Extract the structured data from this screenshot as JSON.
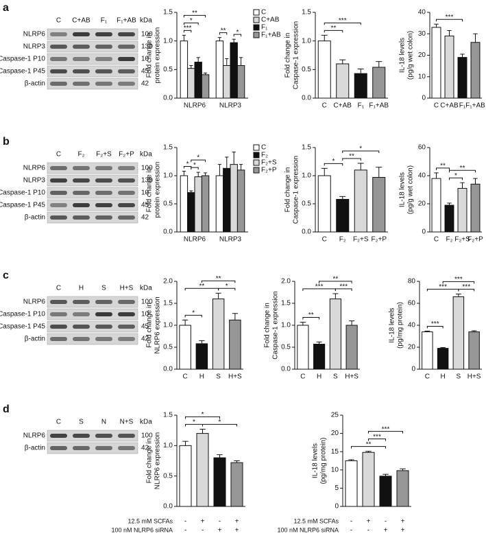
{
  "panels": [
    {
      "label": "a",
      "blot": {
        "unit": "kDa",
        "lanes": [
          "C",
          "C+AB",
          "F₁",
          "F₁+AB"
        ],
        "rows": [
          {
            "name": "NLRP6",
            "kda": 100
          },
          {
            "name": "NLRP3",
            "kda": 130
          },
          {
            "name": "Caspase-1 P10",
            "kda": 10
          },
          {
            "name": "Caspase-1 P45",
            "kda": 45
          },
          {
            "name": "β-actin",
            "kda": 42
          }
        ]
      }
    },
    {
      "label": "b",
      "blot": {
        "unit": "kDa",
        "lanes": [
          "C",
          "F₂",
          "F₂+S",
          "F₂+P"
        ],
        "rows": [
          {
            "name": "NLRP6",
            "kda": 100
          },
          {
            "name": "NLRP3",
            "kda": 130
          },
          {
            "name": "Caspase-1 P10",
            "kda": 10
          },
          {
            "name": "Caspase-1 P45",
            "kda": 45
          },
          {
            "name": "β-actin",
            "kda": 42
          }
        ]
      }
    },
    {
      "label": "c",
      "blot": {
        "unit": "kDa",
        "lanes": [
          "C",
          "H",
          "S",
          "H+S"
        ],
        "rows": [
          {
            "name": "NLRP6",
            "kda": 100
          },
          {
            "name": "Caspase-1 P10",
            "kda": 10
          },
          {
            "name": "Caspase-1 P45",
            "kda": 45
          },
          {
            "name": "β-actin",
            "kda": 42
          }
        ]
      }
    },
    {
      "label": "d",
      "blot": {
        "unit": "kDa",
        "lanes": [
          "C",
          "S",
          "N",
          "N+S"
        ],
        "rows": [
          {
            "name": "NLRP6",
            "kda": 100
          },
          {
            "name": "β-actin",
            "kda": 42
          }
        ]
      }
    }
  ],
  "chart_data": [
    {
      "type": "bar",
      "ylabel": [
        "Fold change in",
        "protein expression"
      ],
      "categories": [
        "NLRP6",
        "NLRP3"
      ],
      "series": [
        {
          "name": "C",
          "color": "#ffffff",
          "values": [
            1.0,
            1.0
          ],
          "errors": [
            0.1,
            0.06
          ]
        },
        {
          "name": "C+AB",
          "color": "#d9d9d9",
          "values": [
            0.52,
            0.57
          ],
          "errors": [
            0.05,
            0.12
          ]
        },
        {
          "name": "F₁",
          "color": "#111111",
          "values": [
            0.63,
            0.97
          ],
          "errors": [
            0.08,
            0.06
          ]
        },
        {
          "name": "F₁+AB",
          "color": "#969696",
          "values": [
            0.41,
            0.57
          ],
          "errors": [
            0.03,
            0.14
          ]
        }
      ],
      "ylim": [
        0,
        1.5
      ],
      "yticks": [
        {
          "value": 0,
          "label": "0.0"
        },
        0.5,
        {
          "value": 1,
          "label": "1.0"
        },
        1.5
      ],
      "annotations": [
        {
          "text": "***",
          "category": 0,
          "between": [
            0,
            1
          ]
        },
        {
          "text": "*",
          "category": 0,
          "between": [
            0,
            2
          ]
        },
        {
          "text": "**",
          "category": 0,
          "between": [
            0,
            3
          ]
        },
        {
          "text": "**",
          "category": 1,
          "between": [
            0,
            1
          ]
        },
        {
          "text": "*",
          "category": 1,
          "between": [
            2,
            3
          ]
        }
      ]
    },
    {
      "type": "bar",
      "ylabel": [
        "Fold change in",
        "Caspase-1 expression"
      ],
      "categories": [
        "C",
        "C+AB",
        "F₁",
        "F₁+AB"
      ],
      "values": [
        1.0,
        0.6,
        0.43,
        0.54
      ],
      "errors": [
        0.1,
        0.07,
        0.08,
        0.1
      ],
      "colors": [
        "#ffffff",
        "#d9d9d9",
        "#111111",
        "#969696"
      ],
      "ylim": [
        0,
        1.5
      ],
      "yticks": [
        {
          "value": 0,
          "label": "0.0"
        },
        0.5,
        {
          "value": 1,
          "label": "1.0"
        },
        1.5
      ],
      "annotations": [
        {
          "text": "**",
          "between": [
            0,
            1
          ]
        },
        {
          "text": "***",
          "between": [
            0,
            2
          ]
        }
      ]
    },
    {
      "type": "bar",
      "ylabel": [
        "IL-18 levels",
        "(pg/g wet colon)"
      ],
      "categories": [
        "C",
        "C+AB",
        "F₁",
        "F₁+AB"
      ],
      "values": [
        33,
        29,
        19,
        26
      ],
      "errors": [
        1.5,
        2.5,
        1.5,
        4
      ],
      "colors": [
        "#ffffff",
        "#d9d9d9",
        "#111111",
        "#969696"
      ],
      "ylim": [
        0,
        40
      ],
      "yticks": [
        0,
        10,
        20,
        30,
        40
      ],
      "annotations": [
        {
          "text": "***",
          "between": [
            0,
            2
          ]
        }
      ]
    },
    {
      "type": "bar",
      "ylabel": [
        "Fold change in",
        "protein expression"
      ],
      "categories": [
        "NLRP6",
        "NLRP3"
      ],
      "series": [
        {
          "name": "C",
          "color": "#ffffff",
          "values": [
            1.0,
            1.0
          ],
          "errors": [
            0.08,
            0.2
          ]
        },
        {
          "name": "F₂",
          "color": "#111111",
          "values": [
            0.7,
            1.13
          ],
          "errors": [
            0.03,
            0.2
          ]
        },
        {
          "name": "F₂+S",
          "color": "#d9d9d9",
          "values": [
            0.98,
            1.2
          ],
          "errors": [
            0.08,
            0.22
          ]
        },
        {
          "name": "F₂+P",
          "color": "#969696",
          "values": [
            1.0,
            1.1
          ],
          "errors": [
            0.05,
            0.1
          ]
        }
      ],
      "ylim": [
        0,
        1.5
      ],
      "yticks": [
        {
          "value": 0,
          "label": "0.0"
        },
        0.5,
        {
          "value": 1,
          "label": "1.0"
        },
        1.5
      ],
      "annotations": [
        {
          "text": "*",
          "category": 0,
          "between": [
            0,
            1
          ]
        },
        {
          "text": "*",
          "category": 0,
          "between": [
            1,
            2
          ]
        },
        {
          "text": "*",
          "category": 0,
          "between": [
            1,
            3
          ]
        }
      ]
    },
    {
      "type": "bar",
      "ylabel": [
        "Fold change in",
        "Caspase-1 expression"
      ],
      "categories": [
        "C",
        "F₂",
        "F₂+S",
        "F₂+P"
      ],
      "values": [
        1.0,
        0.58,
        1.1,
        0.97
      ],
      "errors": [
        0.13,
        0.05,
        0.12,
        0.18
      ],
      "colors": [
        "#ffffff",
        "#111111",
        "#d9d9d9",
        "#969696"
      ],
      "ylim": [
        0,
        1.5
      ],
      "yticks": [
        {
          "value": 0,
          "label": "0.0"
        },
        0.5,
        {
          "value": 1,
          "label": "1.0"
        },
        1.5
      ],
      "annotations": [
        {
          "text": "*",
          "between": [
            0,
            1
          ]
        },
        {
          "text": "**",
          "between": [
            1,
            2
          ]
        },
        {
          "text": "*",
          "between": [
            1,
            3
          ]
        }
      ]
    },
    {
      "type": "bar",
      "ylabel": [
        "IL-18 levels",
        "(pg/g wet colon)"
      ],
      "categories": [
        "C",
        "F₂",
        "F₂+S",
        "F₂+P"
      ],
      "values": [
        38,
        19,
        31,
        34
      ],
      "errors": [
        4,
        1.5,
        4,
        4
      ],
      "colors": [
        "#ffffff",
        "#111111",
        "#d9d9d9",
        "#969696"
      ],
      "ylim": [
        0,
        60
      ],
      "yticks": [
        0,
        20,
        40,
        60
      ],
      "annotations": [
        {
          "text": "**",
          "between": [
            0,
            1
          ]
        },
        {
          "text": "*",
          "between": [
            1,
            2
          ]
        },
        {
          "text": "**",
          "between": [
            1,
            3
          ]
        }
      ]
    },
    {
      "type": "bar",
      "ylabel": [
        "Fold change in",
        "NLRP6 expression"
      ],
      "categories": [
        "C",
        "H",
        "S",
        "H+S"
      ],
      "values": [
        1.0,
        0.58,
        1.6,
        1.12
      ],
      "errors": [
        0.12,
        0.07,
        0.13,
        0.15
      ],
      "colors": [
        "#ffffff",
        "#111111",
        "#d9d9d9",
        "#969696"
      ],
      "ylim": [
        0,
        2
      ],
      "yticks": [
        {
          "value": 0,
          "label": "0.0"
        },
        0.5,
        {
          "value": 1,
          "label": "1.0"
        },
        1.5,
        {
          "value": 2,
          "label": "2.0"
        }
      ],
      "annotations": [
        {
          "text": "*",
          "between": [
            0,
            1
          ]
        },
        {
          "text": "*",
          "between": [
            2,
            3
          ]
        },
        {
          "text": "**",
          "between": [
            0,
            2
          ]
        },
        {
          "text": "**",
          "between": [
            1,
            3
          ]
        }
      ]
    },
    {
      "type": "bar",
      "ylabel": [
        "Fold change in",
        "Caspase-1 expression"
      ],
      "categories": [
        "C",
        "H",
        "S",
        "H+S"
      ],
      "values": [
        1.0,
        0.57,
        1.6,
        1.0
      ],
      "errors": [
        0.07,
        0.05,
        0.12,
        0.1
      ],
      "colors": [
        "#ffffff",
        "#111111",
        "#d9d9d9",
        "#969696"
      ],
      "ylim": [
        0,
        2
      ],
      "yticks": [
        {
          "value": 0,
          "label": "0.0"
        },
        0.5,
        {
          "value": 1,
          "label": "1.0"
        },
        1.5,
        {
          "value": 2,
          "label": "2.0"
        }
      ],
      "annotations": [
        {
          "text": "**",
          "between": [
            0,
            1
          ]
        },
        {
          "text": "***",
          "between": [
            2,
            3
          ]
        },
        {
          "text": "***",
          "between": [
            0,
            2
          ]
        },
        {
          "text": "**",
          "between": [
            1,
            3
          ]
        }
      ]
    },
    {
      "type": "bar",
      "ylabel": [
        "IL-18 levels",
        "(pg/mg protein)"
      ],
      "categories": [
        "C",
        "H",
        "S",
        "H+S"
      ],
      "values": [
        34,
        19,
        66,
        34
      ],
      "errors": [
        0.7,
        0.7,
        2.5,
        1
      ],
      "colors": [
        "#ffffff",
        "#111111",
        "#d9d9d9",
        "#969696"
      ],
      "ylim": [
        0,
        80
      ],
      "yticks": [
        0,
        20,
        40,
        60,
        80
      ],
      "annotations": [
        {
          "text": "***",
          "between": [
            0,
            1
          ]
        },
        {
          "text": "***",
          "between": [
            2,
            3
          ]
        },
        {
          "text": "***",
          "between": [
            0,
            2
          ]
        },
        {
          "text": "***",
          "between": [
            1,
            3
          ]
        }
      ]
    },
    {
      "type": "bar",
      "ylabel": [
        "Fold change in",
        "NLRP6 expression"
      ],
      "categories": [
        null,
        null,
        null,
        null
      ],
      "values": [
        1.0,
        1.2,
        0.8,
        0.72
      ],
      "errors": [
        0.07,
        0.07,
        0.05,
        0.03
      ],
      "colors": [
        "#ffffff",
        "#d9d9d9",
        "#111111",
        "#969696"
      ],
      "ylim": [
        0,
        1.5
      ],
      "yticks": [
        {
          "value": 0,
          "label": "0.0"
        },
        0.5,
        {
          "value": 1,
          "label": "1.0"
        },
        1.5
      ],
      "annotations": [
        {
          "text": "*",
          "between": [
            0,
            1
          ]
        },
        {
          "text": "*",
          "between": [
            1,
            3
          ]
        },
        {
          "text": "*",
          "between": [
            0,
            2
          ]
        }
      ],
      "treatments": [
        {
          "name": "12.5 mM SCFAs",
          "signs": [
            "-",
            "+",
            "-",
            "+"
          ]
        },
        {
          "name": "100 nM NLRP6 siRNA",
          "signs": [
            "-",
            "-",
            "+",
            "+"
          ]
        }
      ]
    },
    {
      "type": "bar",
      "ylabel": [
        "IL-18 levels",
        "(pg/mg protein)"
      ],
      "categories": [
        null,
        null,
        null,
        null
      ],
      "values": [
        12.5,
        14.8,
        8.3,
        9.8
      ],
      "errors": [
        0.3,
        0.3,
        0.5,
        0.5
      ],
      "colors": [
        "#ffffff",
        "#d9d9d9",
        "#111111",
        "#969696"
      ],
      "ylim": [
        0,
        25
      ],
      "yticks": [
        0,
        5,
        10,
        15,
        20,
        25
      ],
      "annotations": [
        {
          "text": "**",
          "between": [
            0,
            2
          ]
        },
        {
          "text": "***",
          "between": [
            1,
            2
          ]
        },
        {
          "text": "***",
          "between": [
            1,
            3
          ]
        }
      ],
      "treatments": [
        {
          "name": "12.5 mM SCFAs",
          "signs": [
            "-",
            "+",
            "-",
            "+"
          ]
        },
        {
          "name": "100 nM NLRP6 siRNA",
          "signs": [
            "-",
            "-",
            "+",
            "+"
          ]
        }
      ]
    }
  ]
}
